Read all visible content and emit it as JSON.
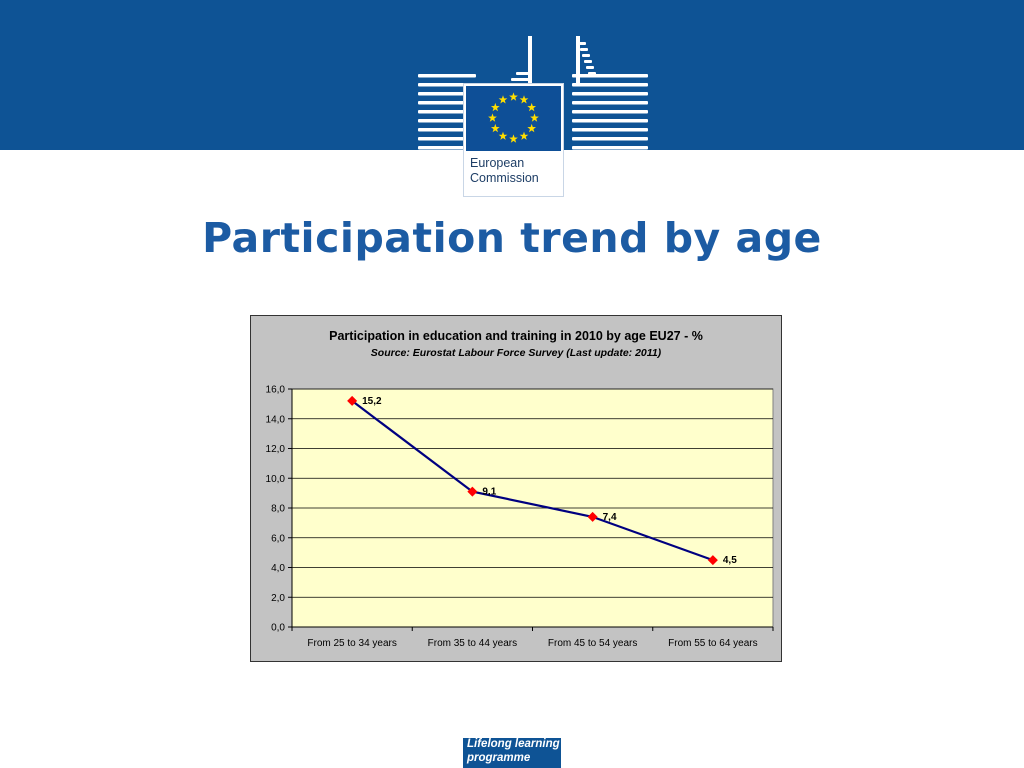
{
  "slide": {
    "title": "Participation trend by age"
  },
  "logo": {
    "line1": "European",
    "line2": "Commission"
  },
  "footer": {
    "line1": "Lifelong learning",
    "line2": "programme"
  },
  "colors": {
    "banner": "#0e5395",
    "title": "#1c5ba3",
    "plot_bg": "#ffffcc",
    "chart_bg": "#c3c3c3",
    "line": "#000080",
    "marker": "#ff0000"
  },
  "chart_data": {
    "type": "line",
    "title": "Participation in education and training in 2010 by age EU27 - %",
    "subtitle": "Source: Eurostat Labour Force Survey (Last update: 2011)",
    "categories": [
      "From 25 to 34 years",
      "From 35 to 44 years",
      "From 45 to 54 years",
      "From 55 to 64 years"
    ],
    "values": [
      15.2,
      9.1,
      7.4,
      4.5
    ],
    "data_labels": [
      "15,2",
      "9,1",
      "7,4",
      "4,5"
    ],
    "yticks": [
      "0,0",
      "2,0",
      "4,0",
      "6,0",
      "8,0",
      "10,0",
      "12,0",
      "14,0",
      "16,0"
    ],
    "ylim": [
      0,
      16
    ],
    "xlabel": "",
    "ylabel": "",
    "grid": true,
    "legend": "none"
  }
}
